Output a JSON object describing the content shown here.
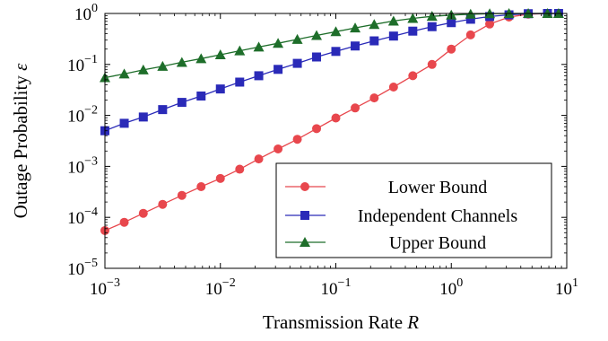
{
  "chart_data": {
    "type": "line",
    "xscale": "log",
    "yscale": "log",
    "xlim": [
      0.001,
      10
    ],
    "ylim": [
      1e-05,
      1
    ],
    "xlabel": "Transmission Rate",
    "xlabel_var": "R",
    "ylabel": "Outage Probability",
    "ylabel_var": "ε",
    "x_ticks": [
      {
        "base": "10",
        "exp": "−3",
        "value": 0.001
      },
      {
        "base": "10",
        "exp": "−2",
        "value": 0.01
      },
      {
        "base": "10",
        "exp": "−1",
        "value": 0.1
      },
      {
        "base": "10",
        "exp": "0",
        "value": 1
      },
      {
        "base": "10",
        "exp": "1",
        "value": 10
      }
    ],
    "y_ticks": [
      {
        "base": "10",
        "exp": "−5",
        "value": 1e-05
      },
      {
        "base": "10",
        "exp": "−4",
        "value": 0.0001
      },
      {
        "base": "10",
        "exp": "−3",
        "value": 0.001
      },
      {
        "base": "10",
        "exp": "−2",
        "value": 0.01
      },
      {
        "base": "10",
        "exp": "−1",
        "value": 0.1
      },
      {
        "base": "10",
        "exp": "0",
        "value": 1
      }
    ],
    "legend_position": "bottom-right",
    "grid": false,
    "x": [
      0.001,
      0.00147,
      0.00215,
      0.00316,
      0.00464,
      0.00681,
      0.01,
      0.0147,
      0.0215,
      0.0316,
      0.0464,
      0.0681,
      0.1,
      0.147,
      0.215,
      0.316,
      0.464,
      0.681,
      1.0,
      1.47,
      2.15,
      3.16,
      4.64,
      6.81,
      8.5
    ],
    "series": [
      {
        "name": "Lower Bound",
        "color": "#e8474d",
        "marker": "circle",
        "values": [
          5.5e-05,
          8e-05,
          0.00012,
          0.00018,
          0.00027,
          0.0004,
          0.00058,
          0.00088,
          0.0014,
          0.0022,
          0.0034,
          0.0055,
          0.0089,
          0.014,
          0.022,
          0.036,
          0.06,
          0.1,
          0.2,
          0.38,
          0.62,
          0.85,
          0.97,
          1.0,
          1.0
        ]
      },
      {
        "name": "Independent Channels",
        "color": "#2a2ab8",
        "marker": "square",
        "values": [
          0.005,
          0.007,
          0.0093,
          0.013,
          0.018,
          0.024,
          0.033,
          0.045,
          0.06,
          0.08,
          0.105,
          0.14,
          0.18,
          0.23,
          0.29,
          0.36,
          0.45,
          0.55,
          0.66,
          0.77,
          0.87,
          0.94,
          0.99,
          1.0,
          1.0
        ]
      },
      {
        "name": "Upper Bound",
        "color": "#1e6e2a",
        "marker": "triangle",
        "values": [
          0.055,
          0.065,
          0.078,
          0.092,
          0.11,
          0.13,
          0.155,
          0.185,
          0.22,
          0.26,
          0.31,
          0.37,
          0.44,
          0.52,
          0.61,
          0.71,
          0.8,
          0.88,
          0.93,
          0.97,
          0.99,
          1.0,
          1.0,
          1.0,
          1.0
        ]
      }
    ]
  }
}
